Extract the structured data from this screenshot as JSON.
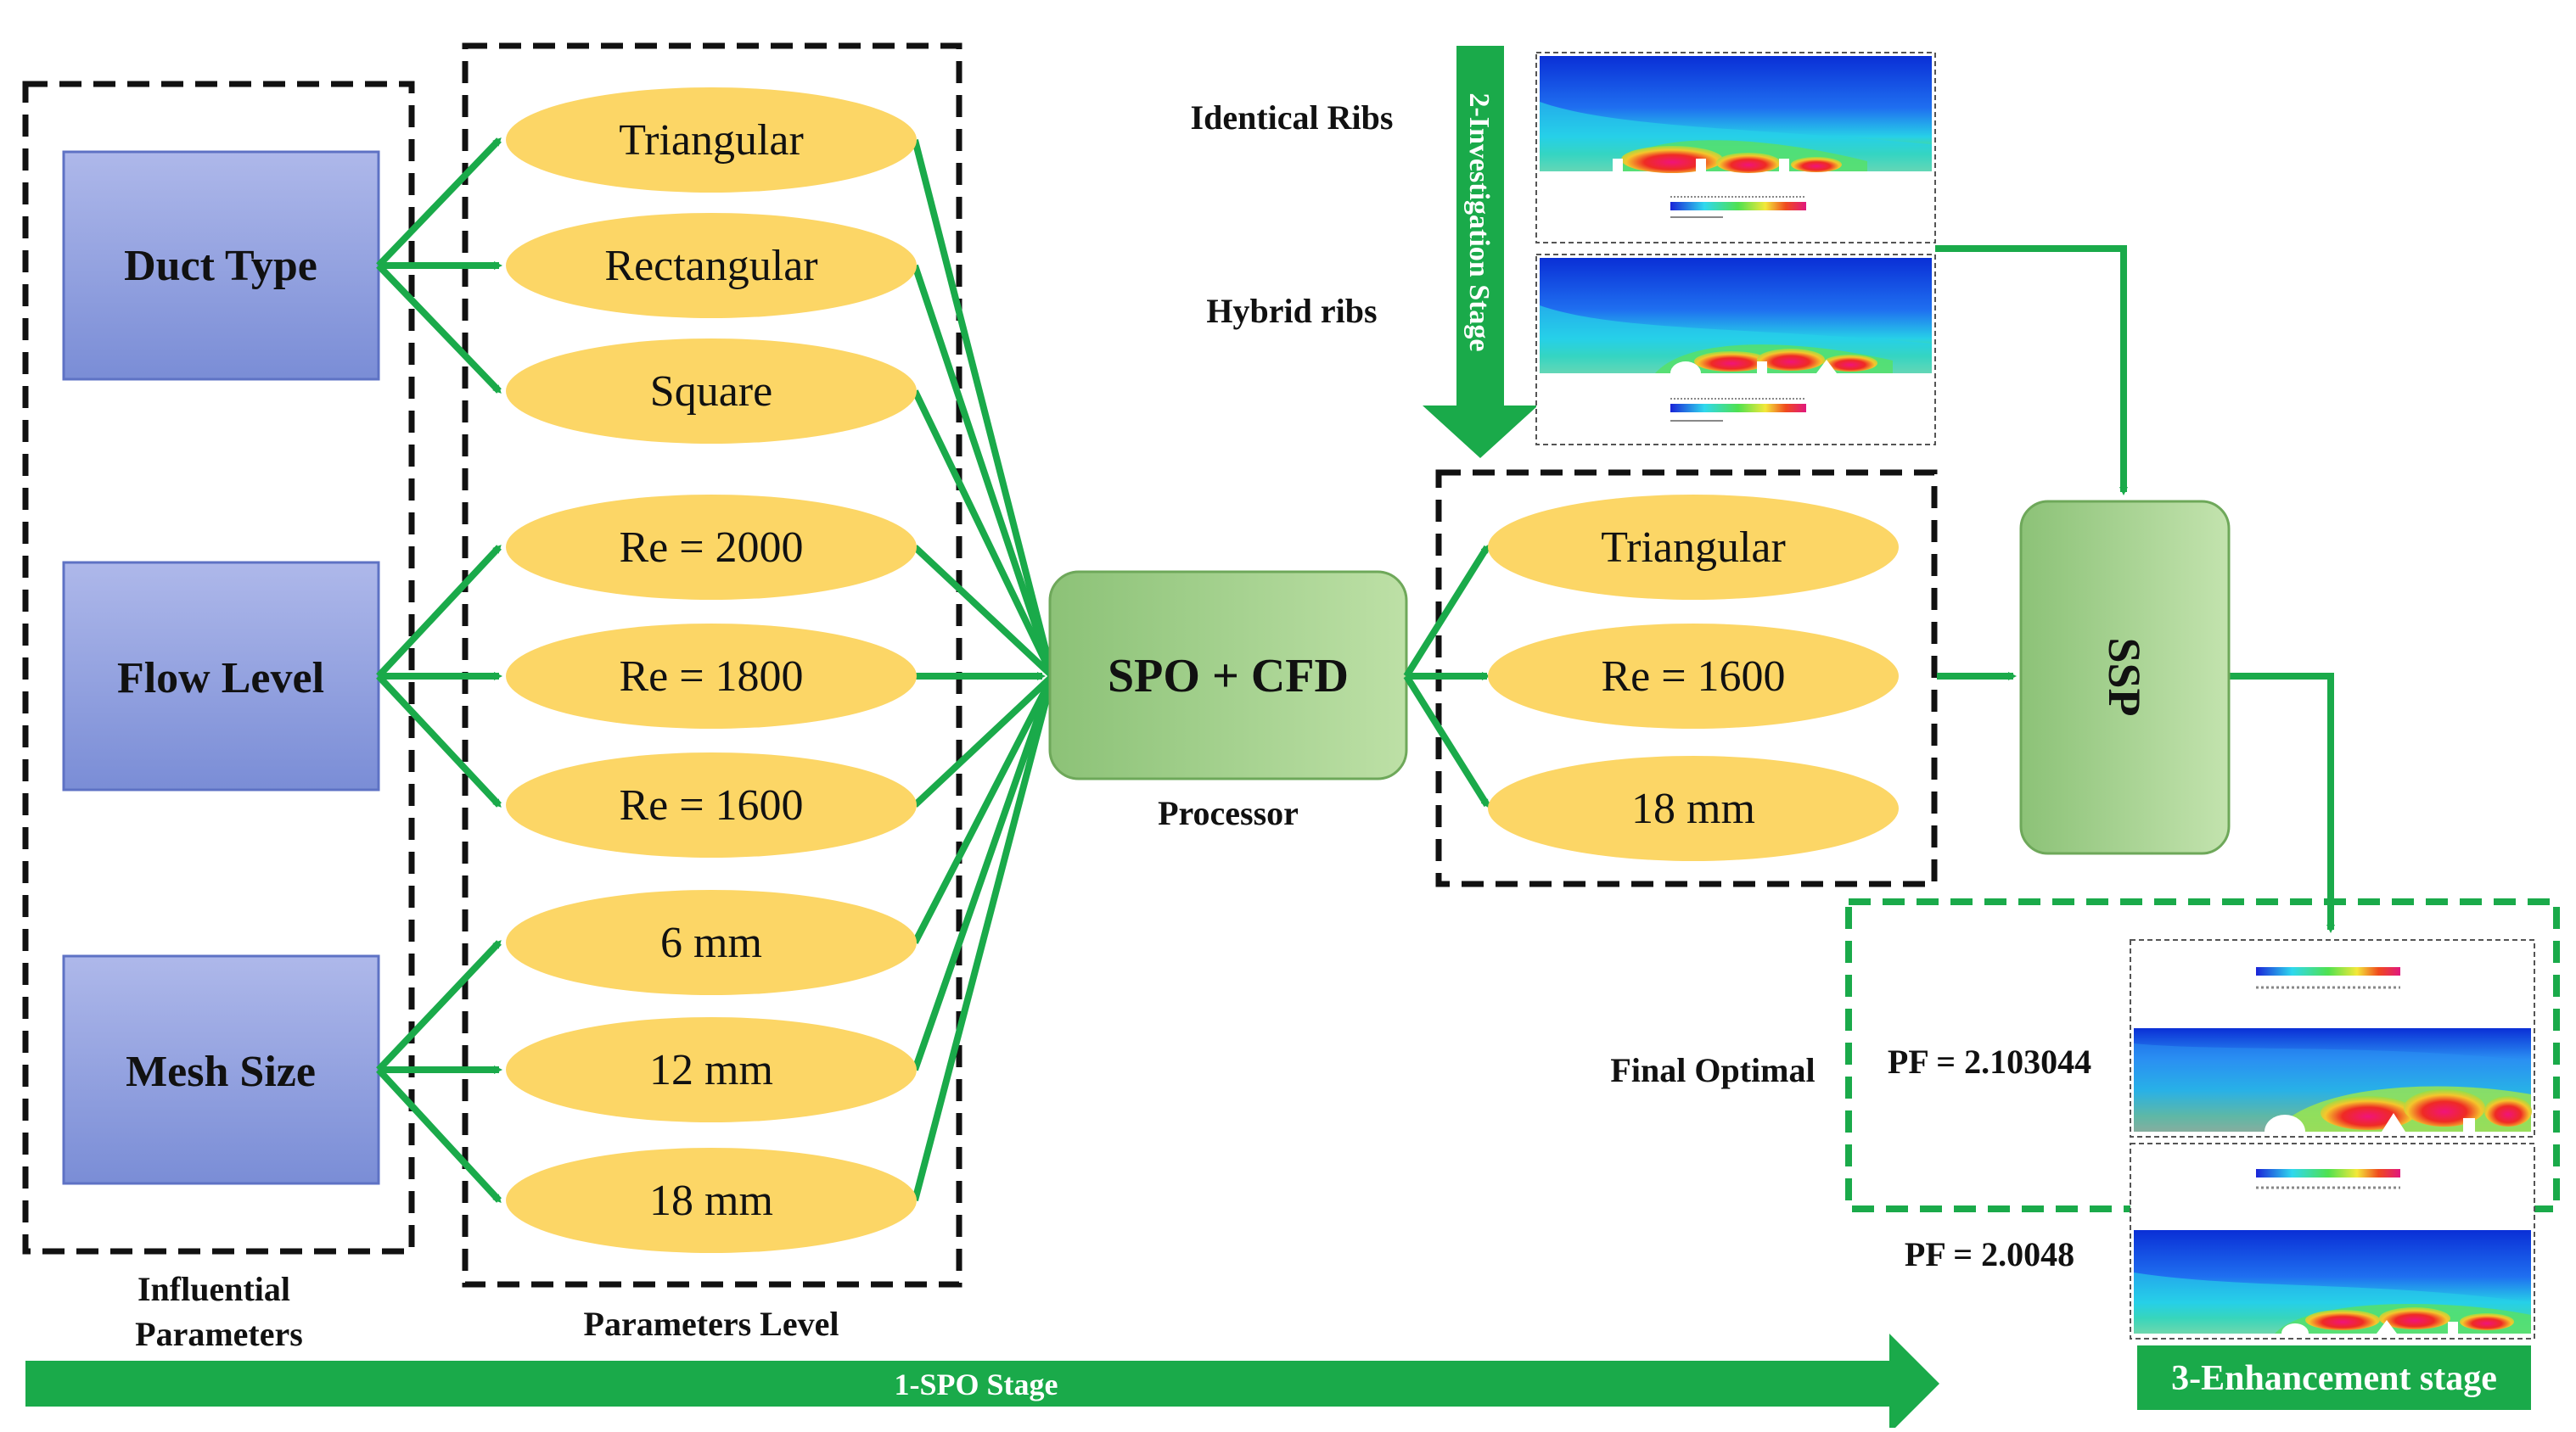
{
  "colors": {
    "green": "#1aaa4a",
    "ellipse": "#fcd666",
    "box_top": "#aab4e6",
    "box_bottom": "#7b8fd8",
    "proc_top": "#b3d89a",
    "proc_bottom": "#8cc277"
  },
  "factors": {
    "duct": "Duct Type",
    "flow": "Flow Level",
    "mesh": "Mesh Size",
    "caption_line1": "Influential",
    "caption_line2": "Parameters"
  },
  "levels": {
    "items": [
      "Triangular",
      "Rectangular",
      "Square",
      "Re = 2000",
      "Re = 1800",
      "Re = 1600",
      "6 mm",
      "12 mm",
      "18 mm"
    ],
    "caption": "Parameters Level"
  },
  "processor": {
    "label": "SPO + CFD",
    "caption": "Processor"
  },
  "investigation": {
    "identical_label": "Identical Ribs",
    "hybrid_label": "Hybrid ribs",
    "stage_label": "2-Investigation Stage"
  },
  "optimal": {
    "items": [
      "Triangular",
      "Re = 1600",
      "18 mm"
    ]
  },
  "ssp": {
    "label": "SSP"
  },
  "enhancement": {
    "final_label": "Final Optimal",
    "pf1": "PF = 2.103044",
    "pf2": "PF = 2.0048",
    "stage_label": "3-Enhancement stage"
  },
  "spo_stage": {
    "label": "1-SPO Stage"
  },
  "icons": [
    "contour-plot-identical-ribs",
    "contour-plot-hybrid-ribs",
    "contour-plot-final-optimal-a",
    "contour-plot-final-optimal-b"
  ]
}
